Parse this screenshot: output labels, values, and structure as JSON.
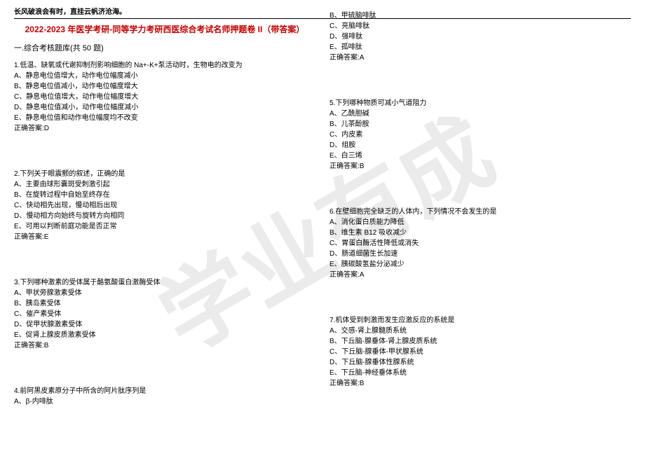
{
  "watermark": "学业有成",
  "header": "长风破浪会有时，直挂云帆济沧海。",
  "title": "2022-2023 年医学考研-同等学力考研西医综合考试名师押题卷 II（带答案）",
  "section_header": "一.综合考核题库(共 50 题)",
  "colors": {
    "title_color": "#c00000",
    "text_color": "#000000",
    "watermark_color": "rgba(0,0,0,0.08)"
  },
  "questions_left": [
    {
      "stem": "1.低温、缺氧或代谢抑制剂影响细胞的 Na+-K+泵活动时，生物电的改变为",
      "options": [
        "A、静息电位值增大，动作电位幅度减小",
        "B、静息电位值减小，动作电位幅度增大",
        "C、静息电位值增大，动作电位幅度增大",
        "D、静息电位值减小，动作电位幅度减小",
        "E、静息电位值和动作电位幅度均不改变"
      ],
      "answer": "正确答案:D"
    },
    {
      "stem": "2.下列关于眼震颤的叙述，正确的是",
      "options": [
        "A、主要由球形囊斑受刺激引起",
        "B、在旋转过程中自始至终存在",
        "C、快动相先出现，慢动相后出现",
        "D、慢动相方向始终与旋转方向相同",
        "E、可用以判断前庭功能是否正常"
      ],
      "answer": "正确答案:E"
    },
    {
      "stem": "3.下列哪种激素的受体属于酪氨酸蛋白激酶受体",
      "options": [
        "A、甲状旁腺激素受体",
        "B、胰岛素受体",
        "C、催产素受体",
        "D、促甲状腺激素受体",
        "E、促肾上腺皮质激素受体"
      ],
      "answer": "正确答案:B"
    },
    {
      "stem": "4.前阿黑皮素原分子中所含的阿片肽序列是",
      "options": [
        "A、β-内啡肽"
      ],
      "answer": ""
    }
  ],
  "questions_right": [
    {
      "stem": "",
      "options": [
        "B、甲硫脑啡肽",
        "C、亮脑啡肽",
        "D、强啡肽",
        "E、孤啡肽"
      ],
      "answer": "正确答案:A"
    },
    {
      "stem": "5.下列哪种物质可减小气道阻力",
      "options": [
        "A、乙酰胆碱",
        "B、儿茶酚胺",
        "C、内皮素",
        "D、组胺",
        "E、白三烯"
      ],
      "answer": "正确答案:B"
    },
    {
      "stem": "6.在壁细胞完全缺乏的人体内，下列情况不会发生的是",
      "options": [
        "A、消化蛋白质能力降低",
        "B、维生素 B12 吸收减少",
        "C、胃蛋白酶活性降低或消失",
        "D、肠道细菌生长加速",
        "E、胰碳酸氢盐分泌减少"
      ],
      "answer": "正确答案:A"
    },
    {
      "stem": "7.机体受到刺激而发生应激反应的系统是",
      "options": [
        "A、交感-肾上腺髓质系统",
        "B、下丘脑-腺垂体-肾上腺皮质系统",
        "C、下丘脑-腺垂体-甲状腺系统",
        "D、下丘脑-腺垂体性腺系统",
        "E、下丘脑-神经垂体系统"
      ],
      "answer": "正确答案:B"
    }
  ]
}
